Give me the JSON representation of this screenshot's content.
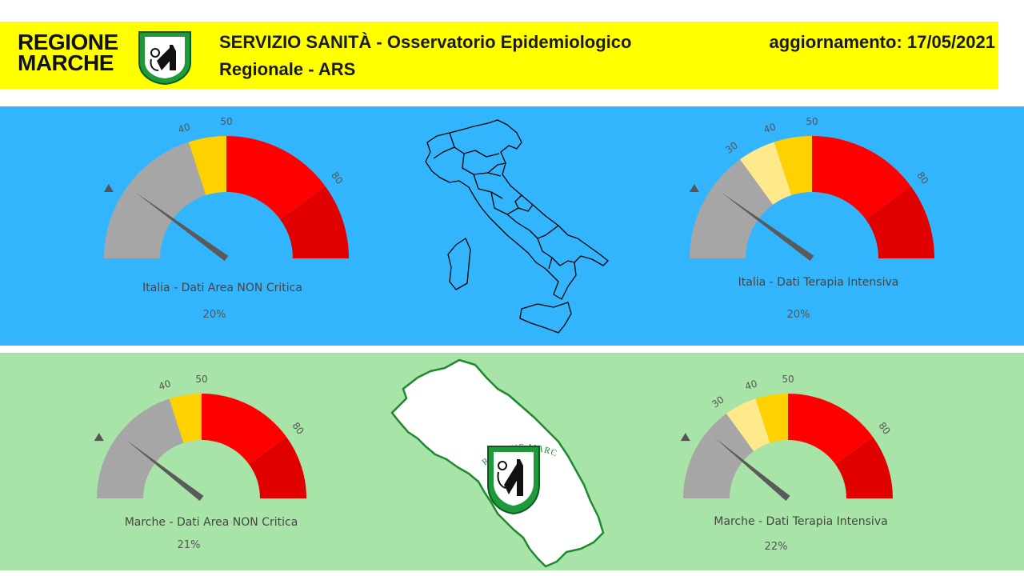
{
  "header": {
    "logo_line1": "REGIONE",
    "logo_line2": "MARCHE",
    "title_line1": "SERVIZIO SANITÀ - Osservatorio Epidemiologico",
    "title_line2": "Regionale - ARS",
    "update": "aggiornamento: 17/05/2021"
  },
  "colors": {
    "header_bg": "#ffff00",
    "blue_panel": "#33b5fd",
    "green_panel": "#a8e4a8",
    "gauge_gray": "#a6a6a6",
    "gauge_yellow": "#ffd100",
    "gauge_light_yellow": "#ffe98a",
    "gauge_red": "#ff0000",
    "gauge_dark_red": "#e00000",
    "needle": "#5a5a5a"
  },
  "gauges": [
    {
      "id": "italia-non-critica",
      "label": "Italia - Dati Area NON Critica",
      "value_text": "20%",
      "value": 20,
      "bands": [
        {
          "from": 0,
          "to": 40,
          "color": "gauge_gray"
        },
        {
          "from": 40,
          "to": 50,
          "color": "gauge_yellow"
        },
        {
          "from": 50,
          "to": 80,
          "color": "gauge_red"
        },
        {
          "from": 80,
          "to": 100,
          "color": "gauge_dark_red"
        }
      ],
      "ticks": [
        "40",
        "50",
        "80"
      ],
      "tick_values": [
        40,
        50,
        80
      ]
    },
    {
      "id": "italia-terapia-intensiva",
      "label": "Italia - Dati Terapia Intensiva",
      "value_text": "20%",
      "value": 20,
      "bands": [
        {
          "from": 0,
          "to": 30,
          "color": "gauge_gray"
        },
        {
          "from": 30,
          "to": 40,
          "color": "gauge_light_yellow"
        },
        {
          "from": 40,
          "to": 50,
          "color": "gauge_yellow"
        },
        {
          "from": 50,
          "to": 80,
          "color": "gauge_red"
        },
        {
          "from": 80,
          "to": 100,
          "color": "gauge_dark_red"
        }
      ],
      "ticks": [
        "30",
        "40",
        "50",
        "80"
      ],
      "tick_values": [
        30,
        40,
        50,
        80
      ]
    },
    {
      "id": "marche-non-critica",
      "label": "Marche - Dati Area NON Critica",
      "value_text": "21%",
      "value": 21,
      "bands": [
        {
          "from": 0,
          "to": 40,
          "color": "gauge_gray"
        },
        {
          "from": 40,
          "to": 50,
          "color": "gauge_yellow"
        },
        {
          "from": 50,
          "to": 80,
          "color": "gauge_red"
        },
        {
          "from": 80,
          "to": 100,
          "color": "gauge_dark_red"
        }
      ],
      "ticks": [
        "40",
        "50",
        "80"
      ],
      "tick_values": [
        40,
        50,
        80
      ]
    },
    {
      "id": "marche-terapia-intensiva",
      "label": "Marche - Dati Terapia Intensiva",
      "value_text": "22%",
      "value": 22,
      "bands": [
        {
          "from": 0,
          "to": 30,
          "color": "gauge_gray"
        },
        {
          "from": 30,
          "to": 40,
          "color": "gauge_light_yellow"
        },
        {
          "from": 40,
          "to": 50,
          "color": "gauge_yellow"
        },
        {
          "from": 50,
          "to": 80,
          "color": "gauge_red"
        },
        {
          "from": 80,
          "to": 100,
          "color": "gauge_dark_red"
        }
      ],
      "ticks": [
        "30",
        "40",
        "50",
        "80"
      ],
      "tick_values": [
        30,
        40,
        50,
        80
      ]
    }
  ],
  "marche_map": {
    "seal_text": "REGIONE MARCHE"
  }
}
